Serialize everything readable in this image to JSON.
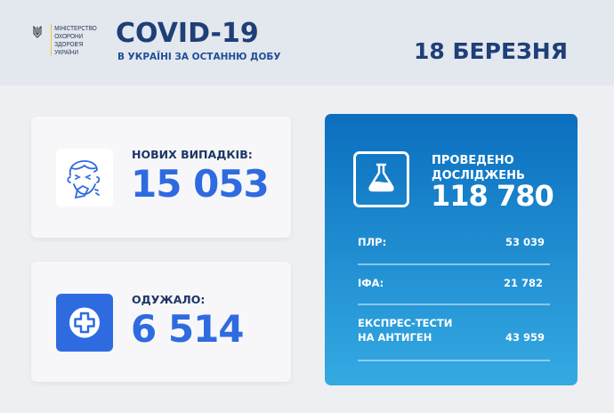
{
  "header": {
    "ministry": [
      "МІНІСТЕРСТВО",
      "ОХОРОНИ",
      "ЗДОРОВ'Я",
      "УКРАЇНИ"
    ],
    "title": "COVID-19",
    "subtitle": "В УКРАЇНІ ЗА ОСТАННЮ ДОБУ",
    "date": "18 БЕРЕЗНЯ"
  },
  "new_cases": {
    "label": "НОВИХ ВИПАДКІВ:",
    "value": "15 053",
    "icon": "sneezing-face-icon"
  },
  "recovered": {
    "label": "ОДУЖАЛО:",
    "value": "6 514",
    "icon": "medical-cross-icon"
  },
  "tests": {
    "label_line1": "ПРОВЕДЕНО",
    "label_line2": "ДОСЛІДЖЕНЬ",
    "value": "118 780",
    "icon": "flask-icon",
    "rows": [
      {
        "label": "ПЛР:",
        "value": "53 039"
      },
      {
        "label": "ІФА:",
        "value": "21 782"
      },
      {
        "label_line1": "ЕКСПРЕС-ТЕСТИ",
        "label_line2": "НА АНТИГЕН",
        "value": "43 959"
      }
    ]
  },
  "colors": {
    "navy": "#1e3f78",
    "accent_blue": "#2f6be0",
    "card_gradient_top": "#0b6fbf",
    "card_gradient_bottom": "#34aae2"
  }
}
